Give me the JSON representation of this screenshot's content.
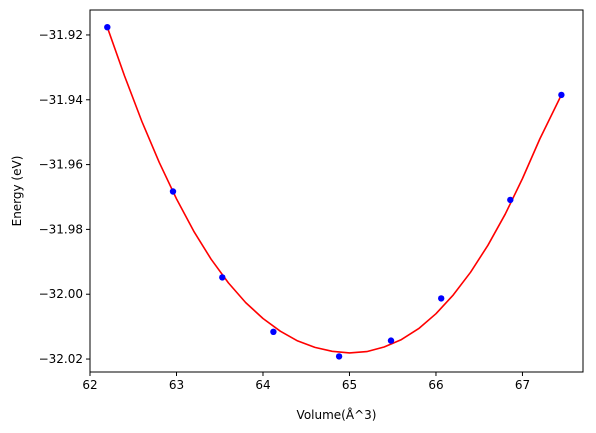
{
  "chart_data": {
    "type": "scatter",
    "title": "",
    "xlabel": "Volume(Å^3)",
    "ylabel": "Energy (eV)",
    "xlim": [
      62.0,
      67.7
    ],
    "ylim": [
      -32.024,
      -31.9123
    ],
    "xticks": [
      62,
      63,
      64,
      65,
      66,
      67
    ],
    "xtick_labels": [
      "62",
      "63",
      "64",
      "65",
      "66",
      "67"
    ],
    "yticks": [
      -32.02,
      -32.0,
      -31.98,
      -31.96,
      -31.94,
      -31.92
    ],
    "ytick_labels": [
      "−32.02",
      "−32.00",
      "−31.98",
      "−31.96",
      "−31.94",
      "−31.92"
    ],
    "grid": false,
    "series": [
      {
        "kind": "points",
        "color": "#0000ff",
        "x": [
          62.2,
          62.96,
          63.53,
          64.12,
          64.88,
          65.48,
          66.06,
          66.86,
          67.45
        ],
        "y": [
          -31.9176,
          -31.9683,
          -31.9948,
          -32.0116,
          -32.0192,
          -32.0143,
          -32.0013,
          -31.9709,
          -31.9385
        ]
      },
      {
        "kind": "fit-curve",
        "color": "#ff0000",
        "x": [
          62.2,
          62.4,
          62.6,
          62.8,
          63.0,
          63.2,
          63.4,
          63.6,
          63.8,
          64.0,
          64.2,
          64.4,
          64.6,
          64.8,
          65.0,
          65.2,
          65.4,
          65.6,
          65.8,
          66.0,
          66.2,
          66.4,
          66.6,
          66.8,
          67.0,
          67.2,
          67.45
        ],
        "y": [
          -31.9176,
          -31.9327,
          -31.9467,
          -31.9593,
          -31.9706,
          -31.9806,
          -31.9892,
          -31.9965,
          -32.0026,
          -32.0075,
          -32.0114,
          -32.0144,
          -32.0164,
          -32.0176,
          -32.0181,
          -32.0177,
          -32.0163,
          -32.014,
          -32.0106,
          -32.006,
          -32.0002,
          -31.9932,
          -31.9849,
          -31.9753,
          -31.9643,
          -31.9521,
          -31.9385
        ]
      }
    ]
  }
}
